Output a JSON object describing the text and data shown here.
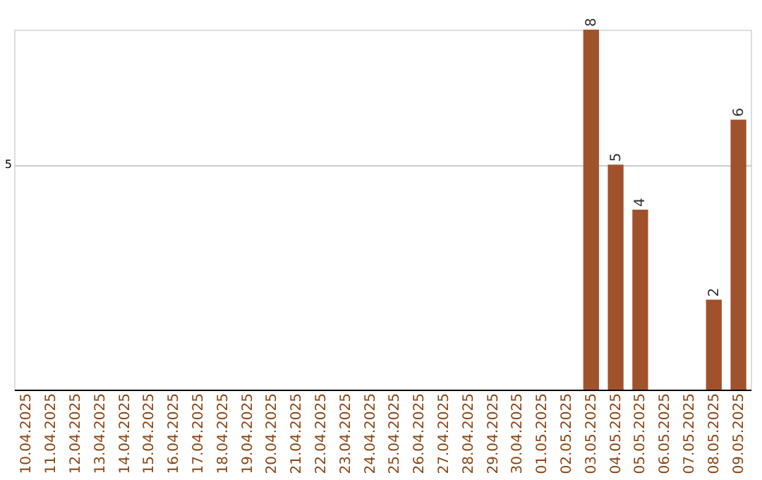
{
  "chart_data": {
    "type": "bar",
    "categories": [
      "10.04.2025",
      "11.04.2025",
      "12.04.2025",
      "13.04.2025",
      "14.04.2025",
      "15.04.2025",
      "16.04.2025",
      "17.04.2025",
      "18.04.2025",
      "19.04.2025",
      "20.04.2025",
      "21.04.2025",
      "22.04.2025",
      "23.04.2025",
      "24.04.2025",
      "25.04.2025",
      "26.04.2025",
      "27.04.2025",
      "28.04.2025",
      "29.04.2025",
      "30.04.2025",
      "01.05.2025",
      "02.05.2025",
      "03.05.2025",
      "04.05.2025",
      "05.05.2025",
      "06.05.2025",
      "07.05.2025",
      "08.05.2025",
      "09.05.2025"
    ],
    "values": [
      null,
      null,
      null,
      null,
      null,
      null,
      null,
      null,
      null,
      null,
      null,
      null,
      null,
      null,
      null,
      null,
      null,
      null,
      null,
      null,
      null,
      null,
      null,
      8,
      5,
      4,
      null,
      null,
      2,
      6
    ],
    "color": "#a0522d",
    "ylim": [
      0,
      8
    ],
    "yticks": [
      5
    ],
    "grid": "y",
    "data_labels": true
  }
}
